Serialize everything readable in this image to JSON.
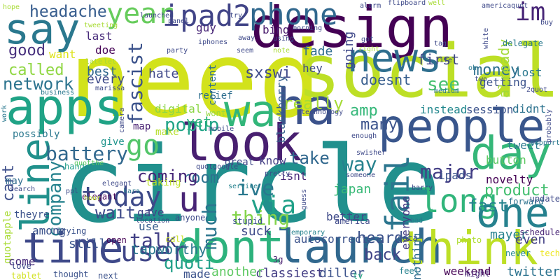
{
  "words": [
    {
      "text": "need",
      "color": "#d2e21b"
    },
    {
      "text": "circle",
      "color": "#21908d"
    },
    {
      "text": "design",
      "color": "#440154"
    },
    {
      "text": "social",
      "color": "#bddf26"
    },
    {
      "text": "apps",
      "color": "#20a386"
    },
    {
      "text": "ha",
      "color": "#3b528b"
    },
    {
      "text": "say",
      "color": "#2a788e"
    },
    {
      "text": "people",
      "color": "#39568c"
    },
    {
      "text": "look",
      "color": "#481f70"
    },
    {
      "text": "wa",
      "color": "#32b67a"
    },
    {
      "text": "launch",
      "color": "#31688e"
    },
    {
      "text": "dont",
      "color": "#2db27d"
    },
    {
      "text": "time",
      "color": "#3e4989"
    },
    {
      "text": "think",
      "color": "#bddf26"
    },
    {
      "text": "day",
      "color": "#35b779"
    },
    {
      "text": "one",
      "color": "#26818e"
    },
    {
      "text": "line",
      "color": "#21918c"
    },
    {
      "text": "news",
      "color": "#2e6e8e"
    },
    {
      "text": "phone",
      "color": "#31688e"
    },
    {
      "text": "ipad2",
      "color": "#414487"
    },
    {
      "text": "year",
      "color": "#67cc5c"
    },
    {
      "text": "headache",
      "color": "#365c8d"
    },
    {
      "text": "long",
      "color": "#31b57b"
    },
    {
      "text": "fail",
      "color": "#2b758e"
    },
    {
      "text": "today",
      "color": "#3e4a89"
    },
    {
      "text": "u",
      "color": "#482475"
    },
    {
      "text": "go",
      "color": "#52c569"
    },
    {
      "text": "user",
      "color": "#404688"
    },
    {
      "text": "im",
      "color": "#482677"
    },
    {
      "text": "good",
      "color": "#472f7d"
    },
    {
      "text": "network",
      "color": "#2c738e"
    },
    {
      "text": "called",
      "color": "#90d743"
    },
    {
      "text": "battery",
      "color": "#31688e"
    },
    {
      "text": "company",
      "color": "#26828e"
    },
    {
      "text": "fascist",
      "color": "#3b528b"
    },
    {
      "text": "popup",
      "color": "#20a386"
    },
    {
      "text": "sxswi",
      "color": "#3e4989"
    },
    {
      "text": "money",
      "color": "#2d708e"
    },
    {
      "text": "going",
      "color": "#3f4889"
    },
    {
      "text": "doesnt",
      "color": "#365d8d"
    },
    {
      "text": "first",
      "color": "#3f4788"
    },
    {
      "text": "see",
      "color": "#46c06f"
    },
    {
      "text": "already",
      "color": "#a2da37"
    },
    {
      "text": "amp",
      "color": "#35b779"
    },
    {
      "text": "really",
      "color": "#a5db36"
    },
    {
      "text": "many",
      "color": "#3b528b"
    },
    {
      "text": "take",
      "color": "#31688e"
    },
    {
      "text": "major",
      "color": "#433e85"
    },
    {
      "text": "product",
      "color": "#44bf70"
    },
    {
      "text": "via",
      "color": "#1fa088"
    },
    {
      "text": "ive",
      "color": "#29788e"
    },
    {
      "text": "way",
      "color": "#26828e"
    },
    {
      "text": "room",
      "color": "#2c718e"
    },
    {
      "text": "thing",
      "color": "#84d44b"
    },
    {
      "text": "wait",
      "color": "#3e4a89"
    },
    {
      "text": "coming",
      "color": "#482878"
    },
    {
      "text": "talk",
      "color": "#424086"
    },
    {
      "text": "quoti",
      "color": "#1f9f88"
    },
    {
      "text": "much",
      "color": "#2b758e"
    },
    {
      "text": "cant",
      "color": "#3d4e8a"
    },
    {
      "text": "fast",
      "color": "#25848e"
    },
    {
      "text": "tapworthy",
      "color": "#2a788e"
    },
    {
      "text": "still",
      "color": "#3a548c"
    },
    {
      "text": "autocorrect",
      "color": "#3b528b"
    },
    {
      "text": "heard",
      "color": "#3b528b"
    },
    {
      "text": "back",
      "color": "#414487"
    },
    {
      "text": "weekend",
      "color": "#440154"
    },
    {
      "text": "twitter",
      "color": "#2c728e"
    },
    {
      "text": "diller",
      "color": "#3b528b"
    },
    {
      "text": "classiest",
      "color": "#433d84"
    },
    {
      "text": "another",
      "color": "#5ec962"
    },
    {
      "text": "made",
      "color": "#3b528b"
    },
    {
      "text": "suck",
      "color": "#3e4a89"
    },
    {
      "text": "mayer",
      "color": "#26828e"
    },
    {
      "text": "even",
      "color": "#423f85"
    },
    {
      "text": "hate",
      "color": "#3f4889"
    },
    {
      "text": "best",
      "color": "#31688e"
    },
    {
      "text": "every",
      "color": "#3e4a89"
    },
    {
      "text": "doe",
      "color": "#440154"
    },
    {
      "text": "last",
      "color": "#472a7a"
    },
    {
      "text": "guy",
      "color": "#482677"
    },
    {
      "text": "bing",
      "color": "#481a6c"
    },
    {
      "text": "fade",
      "color": "#2f6c8e"
    },
    {
      "text": "hey",
      "color": "#3e4a89"
    },
    {
      "text": "getting",
      "color": "#3b528b"
    },
    {
      "text": "lost",
      "color": "#2a788e"
    },
    {
      "text": "instead",
      "color": "#23888e"
    },
    {
      "text": "session",
      "color": "#3b528b"
    },
    {
      "text": "didnt",
      "color": "#2c728e"
    },
    {
      "text": "blackberry",
      "color": "#355f8d"
    },
    {
      "text": "yet",
      "color": "#2fb47c"
    },
    {
      "text": "know",
      "color": "#433e85"
    },
    {
      "text": "isnt",
      "color": "#482677"
    },
    {
      "text": "japan",
      "color": "#38b977"
    },
    {
      "text": "button",
      "color": "#5ec962"
    },
    {
      "text": "tweet",
      "color": "#2a788e"
    },
    {
      "text": "ipads",
      "color": "#3b528b"
    },
    {
      "text": "novelty",
      "color": "#440154"
    },
    {
      "text": "update",
      "color": "#3e4989"
    },
    {
      "text": "forward",
      "color": "#2c728e"
    },
    {
      "text": "better",
      "color": "#3e4a89"
    },
    {
      "text": "everyone",
      "color": "#443a83"
    },
    {
      "text": "nothing",
      "color": "#2f6c8e"
    },
    {
      "text": "gave",
      "color": "#414487"
    },
    {
      "text": "use",
      "color": "#365c8d"
    },
    {
      "text": "among",
      "color": "#3b528b"
    },
    {
      "text": "quotapple",
      "color": "#a8db34"
    },
    {
      "text": "want",
      "color": "#dde318"
    },
    {
      "text": "possibly",
      "color": "#2a788e"
    },
    {
      "text": "content",
      "color": "#2f6c8e"
    },
    {
      "text": "relief",
      "color": "#2e6e8e"
    },
    {
      "text": "map",
      "color": "#482173"
    },
    {
      "text": "digital",
      "color": "#8bd646"
    },
    {
      "text": "hand",
      "color": "#1f9e89"
    },
    {
      "text": "may",
      "color": "#2f6b8e"
    },
    {
      "text": "taking",
      "color": "#bddf26"
    },
    {
      "text": "elegant",
      "color": "#440154"
    },
    {
      "text": "great",
      "color": "#3f4788"
    },
    {
      "text": "give",
      "color": "#1f948c"
    },
    {
      "text": "make",
      "color": "#b5de2b"
    },
    {
      "text": "theyre",
      "color": "#3b528b"
    },
    {
      "text": "trying",
      "color": "#3b528b"
    },
    {
      "text": "come",
      "color": "#472c7a"
    },
    {
      "text": "love",
      "color": "#3e4989"
    },
    {
      "text": "tablet",
      "color": "#d0e11c"
    },
    {
      "text": "thought",
      "color": "#3b528b"
    },
    {
      "text": "next",
      "color": "#3b528b"
    },
    {
      "text": "open",
      "color": "#440154"
    },
    {
      "text": "call",
      "color": "#c8e020"
    },
    {
      "text": "3g",
      "color": "#481f70"
    },
    {
      "text": "tv",
      "color": "#25ac82"
    },
    {
      "text": "feel",
      "color": "#26828e"
    },
    {
      "text": "might",
      "color": "#482878"
    },
    {
      "text": "tech",
      "color": "#ece51b"
    },
    {
      "text": "never",
      "color": "#23888e"
    },
    {
      "text": "schedule",
      "color": "#482475"
    },
    {
      "text": "photo",
      "color": "#addc30"
    },
    {
      "text": "data",
      "color": "#3b528b"
    },
    {
      "text": "america",
      "color": "#3e4989"
    },
    {
      "text": "temporary",
      "color": "#26828e"
    },
    {
      "text": "stupid",
      "color": "#3b528b"
    },
    {
      "text": "anyone",
      "color": "#3e4989"
    },
    {
      "text": "location",
      "color": "#3e4989"
    },
    {
      "text": "elegant2",
      "color": "#3e4989"
    },
    {
      "text": "quotthe",
      "color": "#5ec962"
    },
    {
      "text": "ppl",
      "color": "#3e4989"
    },
    {
      "text": "search",
      "color": "#3e4989"
    },
    {
      "text": "hour",
      "color": "#b8de29"
    },
    {
      "text": "kara",
      "color": "#2a788e"
    },
    {
      "text": "quotgoogle",
      "color": "#3e4989"
    },
    {
      "text": "pretty",
      "color": "#3e4989"
    },
    {
      "text": "service",
      "color": "#26828e"
    },
    {
      "text": "someone",
      "color": "#3e4989"
    },
    {
      "text": "guess",
      "color": "#3e4989"
    },
    {
      "text": "barry",
      "color": "#3e4989"
    },
    {
      "text": "bad",
      "color": "#2a788e"
    },
    {
      "text": "swisher",
      "color": "#3e4989"
    },
    {
      "text": "enough",
      "color": "#3e4989"
    },
    {
      "text": "support",
      "color": "#2a788e"
    },
    {
      "text": "probably",
      "color": "#3e4989"
    },
    {
      "text": "mobile",
      "color": "#3e4989"
    },
    {
      "text": "wont",
      "color": "#95d840"
    },
    {
      "text": "camera",
      "color": "#3e4989"
    },
    {
      "text": "work",
      "color": "#2a788e"
    },
    {
      "text": "business",
      "color": "#2a788e"
    },
    {
      "text": "marissa",
      "color": "#3e4989"
    },
    {
      "text": "medium",
      "color": "#2a788e"
    },
    {
      "text": "2quot",
      "color": "#3e4989"
    },
    {
      "text": "two",
      "color": "#3e4989"
    },
    {
      "text": "oh",
      "color": "#2a788e"
    },
    {
      "text": "technology",
      "color": "#3e4989"
    },
    {
      "text": "party",
      "color": "#3e4989"
    },
    {
      "text": "seem",
      "color": "#3e4989"
    },
    {
      "text": "note",
      "color": "#a8db34"
    },
    {
      "text": "away",
      "color": "#3e4989"
    },
    {
      "text": "morning",
      "color": "#3e4989"
    },
    {
      "text": "using",
      "color": "#3e4989"
    },
    {
      "text": "iphones",
      "color": "#3e4989"
    },
    {
      "text": "panel",
      "color": "#3e4989"
    },
    {
      "text": "tweeting",
      "color": "#a8db34"
    },
    {
      "text": "late",
      "color": "#a8db34"
    },
    {
      "text": "let",
      "color": "#a8db34"
    },
    {
      "text": "hope",
      "color": "#a8db34"
    },
    {
      "text": "launched",
      "color": "#3e4989"
    },
    {
      "text": "try",
      "color": "#3e4989"
    },
    {
      "text": "alarm",
      "color": "#3e4989"
    },
    {
      "text": "flipboard",
      "color": "#3e4989"
    },
    {
      "text": "well",
      "color": "#a8db34"
    },
    {
      "text": "americaquot",
      "color": "#3e4989"
    },
    {
      "text": "white",
      "color": "#3e4989"
    },
    {
      "text": "buy",
      "color": "#3e4989"
    },
    {
      "text": "got",
      "color": "#3e4989"
    },
    {
      "text": "tag",
      "color": "#3e4989"
    },
    {
      "text": "right",
      "color": "#a8db34"
    },
    {
      "text": "delegate",
      "color": "#2a788e"
    },
    {
      "text": "life",
      "color": "#3e4989"
    }
  ]
}
